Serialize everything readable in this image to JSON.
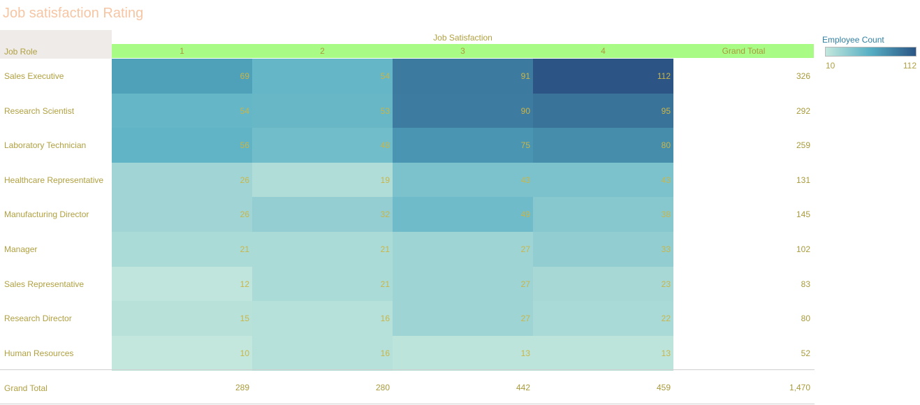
{
  "title": "Job satisfaction Rating",
  "chart_data": {
    "type": "heatmap",
    "row_header": "Job Role",
    "column_header": "Job Satisfaction",
    "columns": [
      "1",
      "2",
      "3",
      "4"
    ],
    "total_label": "Grand Total",
    "rows": [
      {
        "label": "Sales Executive",
        "values": [
          69,
          54,
          91,
          112
        ],
        "total": "326"
      },
      {
        "label": "Research Scientist",
        "values": [
          54,
          53,
          90,
          95
        ],
        "total": "292"
      },
      {
        "label": "Laboratory Technician",
        "values": [
          56,
          48,
          75,
          80
        ],
        "total": "259"
      },
      {
        "label": "Healthcare Representative",
        "values": [
          26,
          19,
          43,
          43
        ],
        "total": "131"
      },
      {
        "label": "Manufacturing Director",
        "values": [
          26,
          32,
          49,
          38
        ],
        "total": "145"
      },
      {
        "label": "Manager",
        "values": [
          21,
          21,
          27,
          33
        ],
        "total": "102"
      },
      {
        "label": "Sales Representative",
        "values": [
          12,
          21,
          27,
          23
        ],
        "total": "83"
      },
      {
        "label": "Research Director",
        "values": [
          15,
          16,
          27,
          22
        ],
        "total": "80"
      },
      {
        "label": "Human Resources",
        "values": [
          10,
          16,
          13,
          13
        ],
        "total": "52"
      }
    ],
    "grand_totals": [
      "289",
      "280",
      "442",
      "459",
      "1,470"
    ],
    "legend": {
      "title": "Employee Count",
      "min": 10,
      "max": 112,
      "color_low": "#c3e7dd",
      "color_mid": "#56aec3",
      "color_high": "#2c5585"
    }
  }
}
